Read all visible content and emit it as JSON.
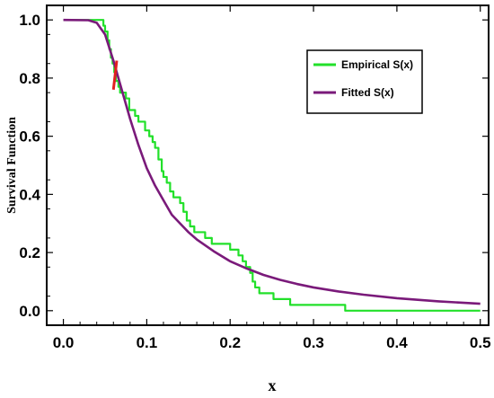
{
  "chart_data": {
    "type": "line",
    "xlabel": "x",
    "ylabel": "Survival Function",
    "xlim": [
      -0.02,
      0.51
    ],
    "ylim": [
      -0.05,
      1.05
    ],
    "xticks": [
      0.0,
      0.1,
      0.2,
      0.3,
      0.4,
      0.5
    ],
    "xtick_labels": [
      "0.0",
      "0.1",
      "0.2",
      "0.3",
      "0.4",
      "0.5"
    ],
    "yticks": [
      0.0,
      0.2,
      0.4,
      0.6,
      0.8,
      1.0
    ],
    "ytick_labels": [
      "0.0",
      "0.2",
      "0.4",
      "0.6",
      "0.8",
      "1.0"
    ],
    "grid": false,
    "legend_position": "top-right",
    "series": [
      {
        "name": "Empirical S(x)",
        "color": "#22e02a",
        "style": "step",
        "x": [
          0.0,
          0.044,
          0.048,
          0.05,
          0.053,
          0.055,
          0.057,
          0.059,
          0.061,
          0.063,
          0.066,
          0.068,
          0.071,
          0.075,
          0.079,
          0.082,
          0.086,
          0.09,
          0.094,
          0.098,
          0.1,
          0.103,
          0.107,
          0.11,
          0.114,
          0.118,
          0.12,
          0.124,
          0.128,
          0.132,
          0.136,
          0.14,
          0.144,
          0.148,
          0.152,
          0.157,
          0.163,
          0.17,
          0.178,
          0.188,
          0.2,
          0.204,
          0.21,
          0.215,
          0.219,
          0.224,
          0.227,
          0.23,
          0.235,
          0.243,
          0.252,
          0.262,
          0.272,
          0.3,
          0.338,
          0.345,
          0.4,
          0.45,
          0.5
        ],
        "y": [
          1.0,
          1.0,
          0.98,
          0.96,
          0.93,
          0.9,
          0.87,
          0.85,
          0.82,
          0.79,
          0.77,
          0.75,
          0.75,
          0.73,
          0.69,
          0.69,
          0.67,
          0.65,
          0.65,
          0.62,
          0.62,
          0.6,
          0.58,
          0.56,
          0.52,
          0.48,
          0.46,
          0.44,
          0.41,
          0.39,
          0.39,
          0.37,
          0.34,
          0.31,
          0.29,
          0.27,
          0.27,
          0.25,
          0.23,
          0.23,
          0.21,
          0.21,
          0.19,
          0.17,
          0.15,
          0.13,
          0.1,
          0.08,
          0.06,
          0.06,
          0.04,
          0.04,
          0.02,
          0.02,
          0.0,
          0.0,
          0.0,
          0.0,
          0.0
        ]
      },
      {
        "name": "Fitted S(x)",
        "color": "#7a1a7a",
        "style": "smooth",
        "x": [
          0.0,
          0.03,
          0.04,
          0.05,
          0.06,
          0.07,
          0.08,
          0.09,
          0.1,
          0.11,
          0.12,
          0.13,
          0.14,
          0.15,
          0.16,
          0.18,
          0.2,
          0.22,
          0.24,
          0.26,
          0.28,
          0.3,
          0.33,
          0.36,
          0.4,
          0.45,
          0.5
        ],
        "y": [
          1.0,
          0.999,
          0.99,
          0.95,
          0.86,
          0.76,
          0.66,
          0.57,
          0.49,
          0.43,
          0.38,
          0.33,
          0.3,
          0.27,
          0.245,
          0.205,
          0.17,
          0.145,
          0.123,
          0.106,
          0.092,
          0.08,
          0.066,
          0.055,
          0.043,
          0.032,
          0.024
        ]
      },
      {
        "color": "#e02020",
        "style": "segment",
        "x": [
          0.06,
          0.064
        ],
        "y": [
          0.76,
          0.86
        ]
      }
    ]
  }
}
